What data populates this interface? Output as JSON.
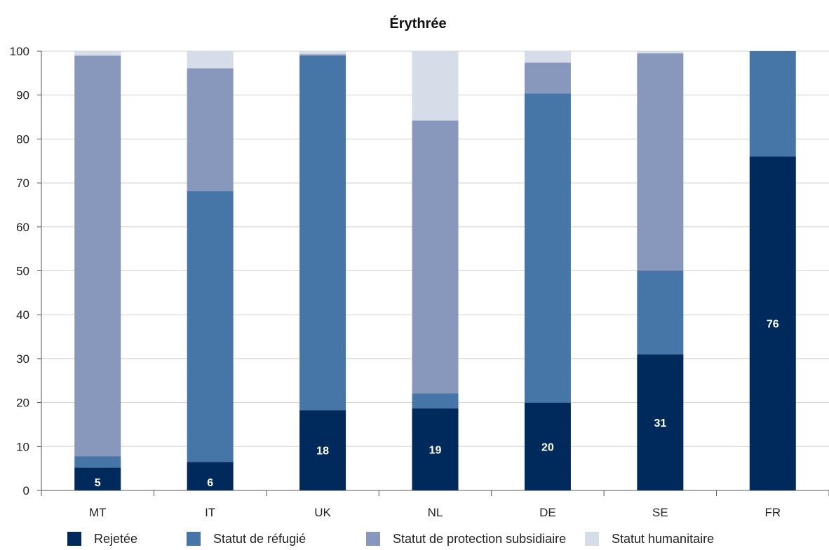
{
  "chart_data": {
    "type": "bar",
    "stacked": true,
    "title": "Érythrée",
    "xlabel": "",
    "ylabel": "",
    "ylim": [
      0,
      100
    ],
    "yticks": [
      0,
      10,
      20,
      30,
      40,
      50,
      60,
      70,
      80,
      90,
      100
    ],
    "categories": [
      "MT",
      "IT",
      "UK",
      "NL",
      "DE",
      "SE",
      "FR"
    ],
    "series": [
      {
        "name": "Rejetée",
        "color": "#002a5c",
        "values": [
          5.2,
          6.5,
          18.3,
          18.7,
          20,
          31,
          76
        ],
        "labels": [
          "5",
          "6",
          "18",
          "19",
          "20",
          "31",
          "76"
        ]
      },
      {
        "name": "Statut de réfugié",
        "color": "#4675a8",
        "values": [
          2.6,
          61.6,
          80.7,
          3.4,
          70.4,
          19,
          24
        ]
      },
      {
        "name": "Statut de protection subsidiaire",
        "color": "#8898bd",
        "values": [
          91.2,
          28,
          0.3,
          62.1,
          7,
          49.5,
          0
        ]
      },
      {
        "name": "Statut humanitaire",
        "color": "#d7dce9",
        "values": [
          1,
          3.9,
          0.7,
          15.8,
          2.6,
          0.5,
          0
        ]
      }
    ],
    "grid": true,
    "legend_position": "bottom"
  }
}
